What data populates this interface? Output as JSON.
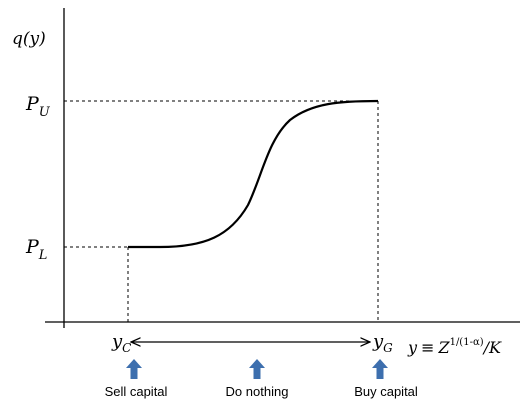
{
  "figure": {
    "y_axis_label": "q(y)",
    "upper_level": {
      "symbol": "P",
      "subscript": "U"
    },
    "lower_level": {
      "symbol": "P",
      "subscript": "L"
    },
    "x_left_marker": {
      "symbol": "y",
      "subscript": "C"
    },
    "x_right_marker": {
      "symbol": "y",
      "subscript": "G"
    },
    "x_axis_label": {
      "lhs": "y",
      "equiv": "≡",
      "base": "Z",
      "exponent": "1/(1-α)",
      "rest": "/K"
    },
    "actions": [
      {
        "label": "Sell capital"
      },
      {
        "label": "Do nothing"
      },
      {
        "label": "Buy capital"
      }
    ]
  },
  "colors": {
    "axis": "#000000",
    "curve": "#000000",
    "guide": "#000000",
    "action_arrow": "#3d6fae"
  },
  "icons": {
    "action_arrow": "up-arrow-icon",
    "range_arrow": "double-headed-arrow-icon"
  }
}
